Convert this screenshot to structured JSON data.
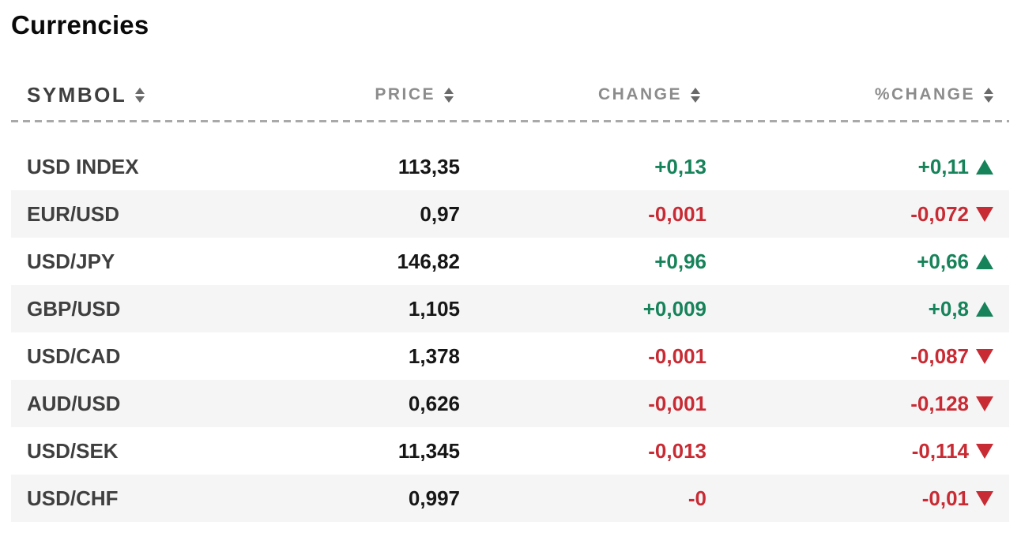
{
  "title": "Currencies",
  "colors": {
    "positive": "#17835A",
    "negative": "#C82B33",
    "row_alt": "#F5F5F6",
    "header_text": "#8C8C8C",
    "divider": "#A9A9A9"
  },
  "table": {
    "columns": [
      {
        "label": "SYMBOL"
      },
      {
        "label": "PRICE"
      },
      {
        "label": "CHANGE"
      },
      {
        "label": "%CHANGE"
      }
    ],
    "rows": [
      {
        "symbol": "USD INDEX",
        "price": "113,35",
        "change": "+0,13",
        "pct_change": "+0,11",
        "direction": "up"
      },
      {
        "symbol": "EUR/USD",
        "price": "0,97",
        "change": "-0,001",
        "pct_change": "-0,072",
        "direction": "down"
      },
      {
        "symbol": "USD/JPY",
        "price": "146,82",
        "change": "+0,96",
        "pct_change": "+0,66",
        "direction": "up"
      },
      {
        "symbol": "GBP/USD",
        "price": "1,105",
        "change": "+0,009",
        "pct_change": "+0,8",
        "direction": "up"
      },
      {
        "symbol": "USD/CAD",
        "price": "1,378",
        "change": "-0,001",
        "pct_change": "-0,087",
        "direction": "down"
      },
      {
        "symbol": "AUD/USD",
        "price": "0,626",
        "change": "-0,001",
        "pct_change": "-0,128",
        "direction": "down"
      },
      {
        "symbol": "USD/SEK",
        "price": "11,345",
        "change": "-0,013",
        "pct_change": "-0,114",
        "direction": "down"
      },
      {
        "symbol": "USD/CHF",
        "price": "0,997",
        "change": "-0",
        "pct_change": "-0,01",
        "direction": "down"
      }
    ]
  }
}
